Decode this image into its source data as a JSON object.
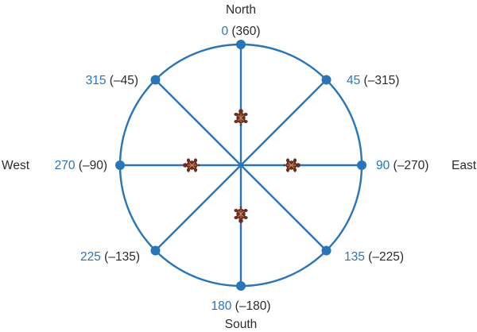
{
  "colors": {
    "blue": "#2a74b8",
    "text_dark": "#2b2b2b",
    "turtle_shell": "#6a2f1c",
    "turtle_light": "#c98a6a"
  },
  "directions": {
    "north": "North",
    "south": "South",
    "east": "East",
    "west": "West"
  },
  "headings": [
    {
      "angle": 0,
      "positive": "0",
      "negative": "(360)"
    },
    {
      "angle": 45,
      "positive": "45",
      "negative": "(–315)"
    },
    {
      "angle": 90,
      "positive": "90",
      "negative": "(–270)"
    },
    {
      "angle": 135,
      "positive": "135",
      "negative": "(–225)"
    },
    {
      "angle": 180,
      "positive": "180",
      "negative": "(–180)"
    },
    {
      "angle": 225,
      "positive": "225",
      "negative": "(–135)"
    },
    {
      "angle": 270,
      "positive": "270",
      "negative": "(–90)"
    },
    {
      "angle": 315,
      "positive": "315",
      "negative": "(–45)"
    }
  ],
  "turtles": [
    {
      "name": "north",
      "heading": 0
    },
    {
      "name": "east",
      "heading": 90
    },
    {
      "name": "south",
      "heading": 180
    },
    {
      "name": "west",
      "heading": 270
    }
  ]
}
